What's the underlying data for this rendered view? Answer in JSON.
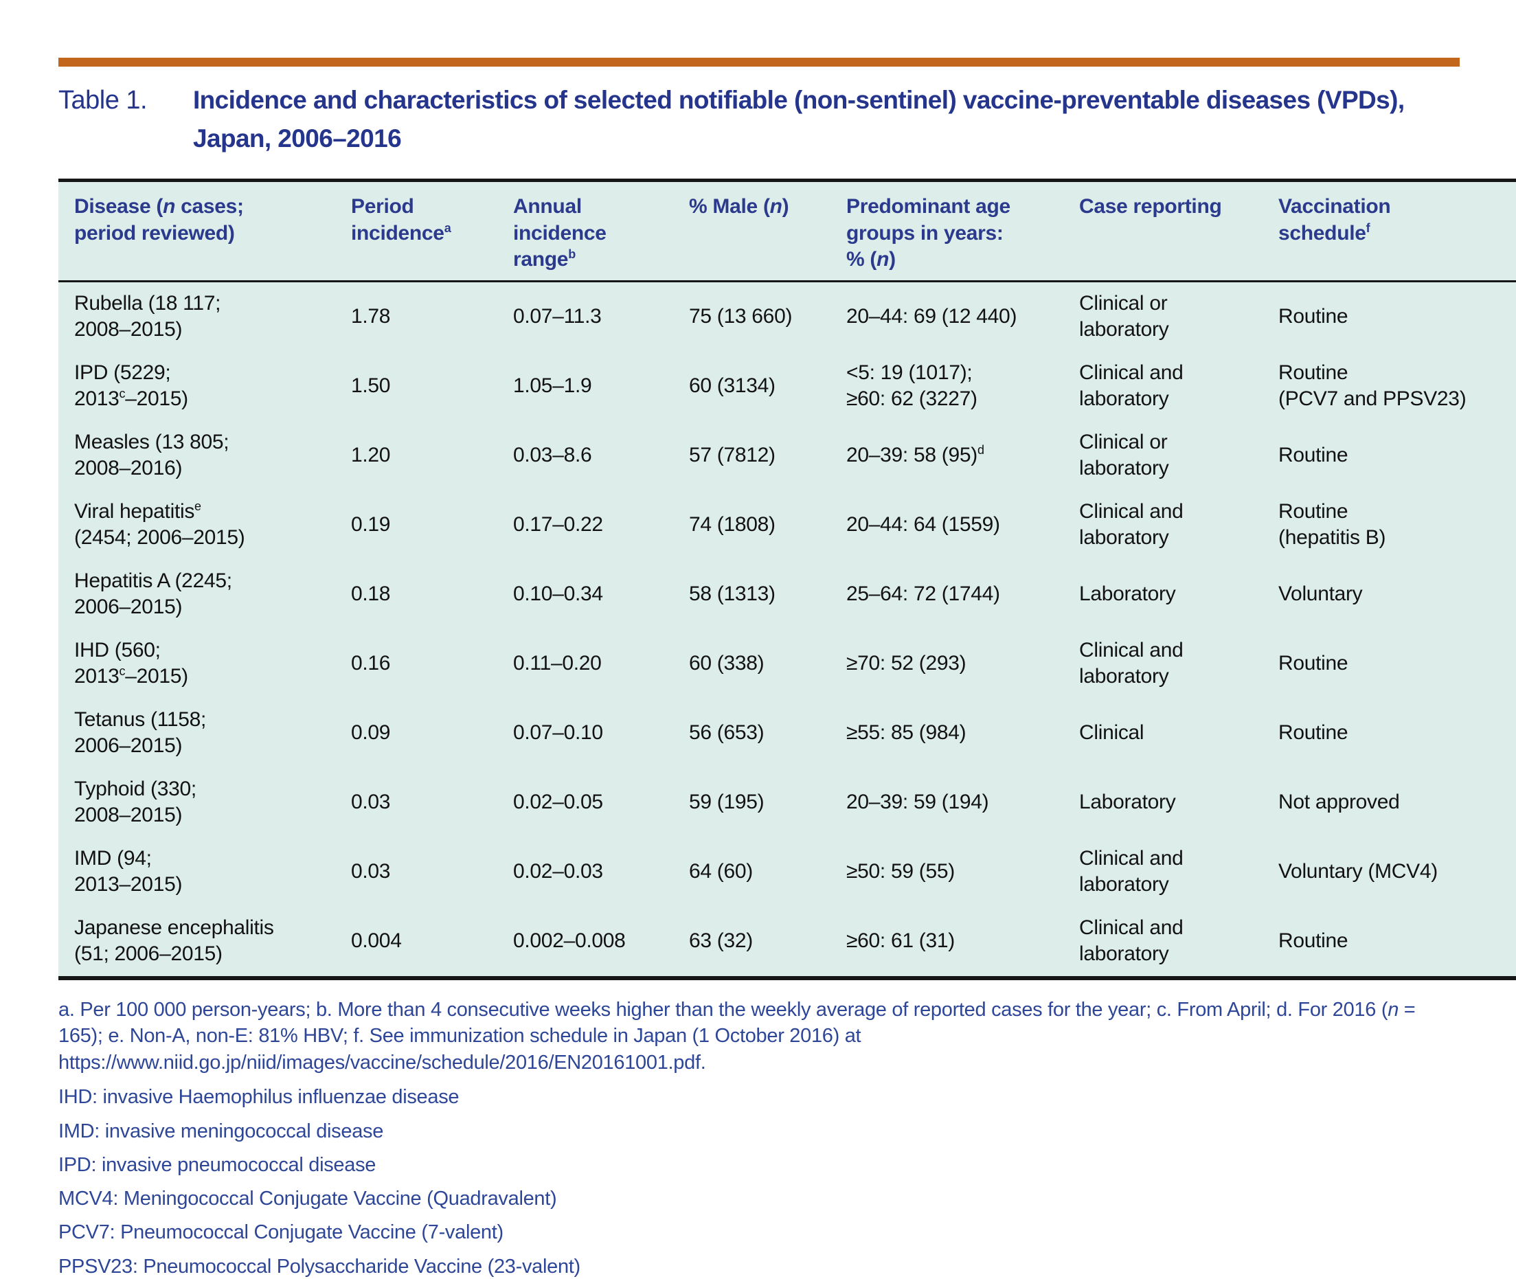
{
  "colors": {
    "accent_orange": "#c2661c",
    "title_blue": "#26358c",
    "header_text_blue": "#2b3a8c",
    "footnote_blue": "#2d4697",
    "table_background_mint": "#ddede9",
    "body_text": "#121212"
  },
  "title": {
    "label": "Table 1.",
    "text_html": "Incidence and characteristics of selected notifiable (non-sentinel) vaccine-preventable diseases (VPDs),<br>Japan, 2006–2016"
  },
  "table": {
    "columns": [
      {
        "key": "disease",
        "label_html": "Disease (<i>n</i> cases;<br>period reviewed)"
      },
      {
        "key": "period_incidence",
        "label_html": "Period<br>incidence<sup>a</sup>"
      },
      {
        "key": "annual_range",
        "label_html": "Annual<br>incidence<br>range<sup>b</sup>"
      },
      {
        "key": "pct_male",
        "label_html": "% Male (<i>n</i>)"
      },
      {
        "key": "age_groups",
        "label_html": "Predominant age<br>groups in years:<br>% (<i>n</i>)"
      },
      {
        "key": "case_reporting",
        "label_html": "Case reporting"
      },
      {
        "key": "vaccination",
        "label_html": "Vaccination<br>schedule<sup>f</sup>"
      }
    ],
    "rows": [
      {
        "disease": "Rubella (18 117;<br>2008–2015)",
        "period_incidence": "1.78",
        "annual_range": "0.07–11.3",
        "pct_male": "75 (13 660)",
        "age_groups": "20–44: 69 (12 440)",
        "case_reporting": "Clinical or<br>laboratory",
        "vaccination": "Routine"
      },
      {
        "disease": "IPD (5229;<br>2013<sup>c</sup>–2015)",
        "period_incidence": "1.50",
        "annual_range": "1.05–1.9",
        "pct_male": "60 (3134)",
        "age_groups": "&lt;5: 19 (1017);<br>≥60: 62 (3227)",
        "case_reporting": "Clinical and<br>laboratory",
        "vaccination": "Routine<br>(PCV7 and PPSV23)"
      },
      {
        "disease": "Measles (13 805;<br>2008–2016)",
        "period_incidence": "1.20",
        "annual_range": "0.03–8.6",
        "pct_male": "57 (7812)",
        "age_groups": "20–39: 58 (95)<sup>d</sup>",
        "case_reporting": "Clinical or<br>laboratory",
        "vaccination": "Routine"
      },
      {
        "disease": "Viral hepatitis<sup>e</sup><br>(2454; 2006–2015)",
        "period_incidence": "0.19",
        "annual_range": "0.17–0.22",
        "pct_male": "74 (1808)",
        "age_groups": "20–44: 64 (1559)",
        "case_reporting": "Clinical and<br>laboratory",
        "vaccination": "Routine<br>(hepatitis B)"
      },
      {
        "disease": "Hepatitis A (2245;<br>2006–2015)",
        "period_incidence": "0.18",
        "annual_range": "0.10–0.34",
        "pct_male": "58 (1313)",
        "age_groups": "25–64: 72 (1744)",
        "case_reporting": "Laboratory",
        "vaccination": "Voluntary"
      },
      {
        "disease": "IHD (560;<br>2013<sup>c</sup>–2015)",
        "period_incidence": "0.16",
        "annual_range": "0.11–0.20",
        "pct_male": "60 (338)",
        "age_groups": "≥70: 52 (293)",
        "case_reporting": "Clinical and<br>laboratory",
        "vaccination": "Routine"
      },
      {
        "disease": "Tetanus (1158;<br>2006–2015)",
        "period_incidence": "0.09",
        "annual_range": "0.07–0.10",
        "pct_male": "56 (653)",
        "age_groups": "≥55: 85 (984)",
        "case_reporting": "Clinical",
        "vaccination": "Routine"
      },
      {
        "disease": "Typhoid (330;<br>2008–2015)",
        "period_incidence": "0.03",
        "annual_range": "0.02–0.05",
        "pct_male": "59 (195)",
        "age_groups": "20–39: 59 (194)",
        "case_reporting": "Laboratory",
        "vaccination": "Not approved"
      },
      {
        "disease": "IMD (94;<br>2013–2015)",
        "period_incidence": "0.03",
        "annual_range": "0.02–0.03",
        "pct_male": "64 (60)",
        "age_groups": "≥50: 59 (55)",
        "case_reporting": "Clinical and<br>laboratory",
        "vaccination": "Voluntary (MCV4)"
      },
      {
        "disease": "Japanese encephalitis<br>(51; 2006–2015)",
        "period_incidence": "0.004",
        "annual_range": "0.002–0.008",
        "pct_male": "63 (32)",
        "age_groups": "≥60: 61 (31)",
        "case_reporting": "Clinical and<br>laboratory",
        "vaccination": "Routine"
      }
    ]
  },
  "footnote_html": "a. Per 100 000 person-years; b. More than 4 consecutive weeks higher than the weekly average of reported cases for the year; c. From April; d. For 2016 (<i>n</i> = 165); e. Non-A, non-E: 81% HBV; f. See immunization schedule in Japan (1 October 2016) at https://www.niid.go.jp/niid/images/vaccine/schedule/2016/EN20161001.pdf.",
  "abbreviations": [
    "IHD: invasive Haemophilus influenzae disease",
    "IMD: invasive meningococcal disease",
    "IPD: invasive pneumococcal disease",
    "MCV4: Meningococcal Conjugate Vaccine (Quadravalent)",
    "PCV7: Pneumococcal Conjugate Vaccine (7-valent)",
    "PPSV23: Pneumococcal Polysaccharide Vaccine (23-valent)"
  ]
}
